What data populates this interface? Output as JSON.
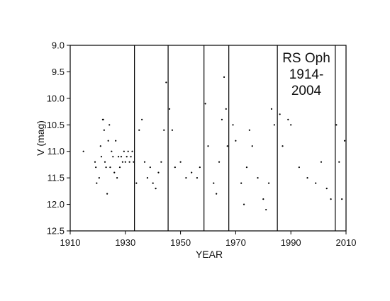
{
  "chart_data": {
    "type": "scatter",
    "title": "",
    "xlabel": "YEAR",
    "ylabel": "V (mag)",
    "xlim": [
      1910,
      2010
    ],
    "ylim": [
      12.5,
      9.0
    ],
    "y_inverted": true,
    "grid": false,
    "x_ticks": [
      "1910",
      "1930",
      "1950",
      "1970",
      "1990",
      "2010"
    ],
    "y_ticks": [
      "9.0",
      "9.5",
      "10.0",
      "10.5",
      "11.0",
      "11.5",
      "12.0",
      "12.5"
    ],
    "annotation": [
      "RS Oph",
      "1914-",
      "2004"
    ],
    "outburst_years": [
      1933.3,
      1945.5,
      1958.5,
      1967.5,
      1985.1,
      2006.1
    ],
    "series": [
      {
        "marker": "dot",
        "color": "#000000",
        "points": [
          [
            1914.8,
            11.0
          ],
          [
            1919.0,
            11.2
          ],
          [
            1919.3,
            11.3
          ],
          [
            1919.6,
            11.6
          ],
          [
            1920.5,
            11.5
          ],
          [
            1921.0,
            10.9
          ],
          [
            1921.3,
            11.1
          ],
          [
            1921.8,
            10.4
          ],
          [
            1922.0,
            10.4
          ],
          [
            1922.3,
            10.6
          ],
          [
            1922.6,
            11.2
          ],
          [
            1923.0,
            11.3
          ],
          [
            1923.4,
            11.8
          ],
          [
            1923.8,
            10.8
          ],
          [
            1924.2,
            10.5
          ],
          [
            1924.5,
            11.3
          ],
          [
            1925.0,
            11.0
          ],
          [
            1925.5,
            11.1
          ],
          [
            1926.0,
            11.4
          ],
          [
            1926.5,
            10.8
          ],
          [
            1927.0,
            11.5
          ],
          [
            1927.5,
            11.1
          ],
          [
            1928.0,
            11.3
          ],
          [
            1928.5,
            11.1
          ],
          [
            1929.0,
            11.2
          ],
          [
            1929.5,
            11.0
          ],
          [
            1930.0,
            11.2
          ],
          [
            1930.5,
            11.1
          ],
          [
            1931.0,
            11.0
          ],
          [
            1931.5,
            11.2
          ],
          [
            1932.0,
            11.1
          ],
          [
            1932.5,
            11.0
          ],
          [
            1933.0,
            11.2
          ],
          [
            1934.0,
            11.6
          ],
          [
            1935.0,
            10.6
          ],
          [
            1936.0,
            10.4
          ],
          [
            1937.0,
            11.2
          ],
          [
            1938.0,
            11.5
          ],
          [
            1939.0,
            11.3
          ],
          [
            1940.0,
            11.6
          ],
          [
            1941.0,
            11.7
          ],
          [
            1942.0,
            11.4
          ],
          [
            1943.0,
            11.2
          ],
          [
            1944.0,
            10.6
          ],
          [
            1944.8,
            9.7
          ],
          [
            1946.0,
            10.2
          ],
          [
            1947.0,
            10.6
          ],
          [
            1948.0,
            11.3
          ],
          [
            1950.0,
            11.2
          ],
          [
            1952.0,
            11.5
          ],
          [
            1954.0,
            11.4
          ],
          [
            1956.0,
            11.5
          ],
          [
            1957.0,
            11.3
          ],
          [
            1959.0,
            10.1
          ],
          [
            1960.0,
            10.9
          ],
          [
            1962.0,
            11.6
          ],
          [
            1963.0,
            11.8
          ],
          [
            1964.0,
            11.2
          ],
          [
            1965.0,
            10.4
          ],
          [
            1965.8,
            9.6
          ],
          [
            1966.5,
            10.2
          ],
          [
            1967.0,
            10.9
          ],
          [
            1969.0,
            10.5
          ],
          [
            1970.0,
            10.8
          ],
          [
            1972.0,
            11.6
          ],
          [
            1973.0,
            12.0
          ],
          [
            1974.0,
            11.3
          ],
          [
            1975.0,
            10.6
          ],
          [
            1976.0,
            10.9
          ],
          [
            1978.0,
            11.5
          ],
          [
            1980.0,
            11.9
          ],
          [
            1981.0,
            12.1
          ],
          [
            1982.0,
            11.6
          ],
          [
            1983.0,
            10.2
          ],
          [
            1984.0,
            10.5
          ],
          [
            1986.0,
            10.3
          ],
          [
            1987.0,
            10.9
          ],
          [
            1989.0,
            10.4
          ],
          [
            1990.0,
            10.5
          ],
          [
            1993.0,
            11.3
          ],
          [
            1996.0,
            11.5
          ],
          [
            1999.0,
            11.6
          ],
          [
            2001.0,
            11.2
          ],
          [
            2003.0,
            11.7
          ],
          [
            2004.5,
            11.9
          ],
          [
            2006.5,
            10.5
          ],
          [
            2007.5,
            11.2
          ],
          [
            2008.5,
            11.9
          ],
          [
            2009.5,
            10.8
          ]
        ]
      }
    ]
  }
}
